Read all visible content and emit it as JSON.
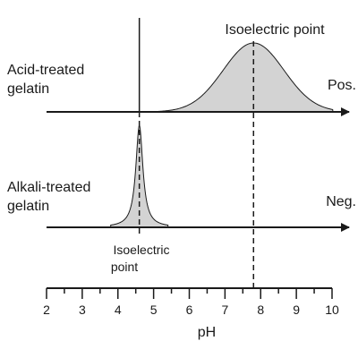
{
  "labels": {
    "acid_line1": "Acid-treated",
    "acid_line2": "gelatin",
    "alkali_line1": "Alkali-treated",
    "alkali_line2": "gelatin",
    "pos": "Pos.",
    "neg": "Neg.",
    "top_iep": "Isoelectric point",
    "bottom_iep_line1": "Isoelectric",
    "bottom_iep_line2": "point",
    "x_axis_title": "pH"
  },
  "scale": {
    "min": 2,
    "max": 10,
    "major_ticks": [
      2,
      3,
      4,
      5,
      6,
      7,
      8,
      9,
      10
    ],
    "minor_step": 0.5
  },
  "curves": {
    "acid": {
      "isoelectric_ph": 7.8,
      "spread": 0.85
    },
    "alkali": {
      "isoelectric_ph": 4.6,
      "spread": 0.12
    }
  },
  "colors": {
    "fill": "#d3d3d3",
    "stroke": "#1a1a1a"
  }
}
